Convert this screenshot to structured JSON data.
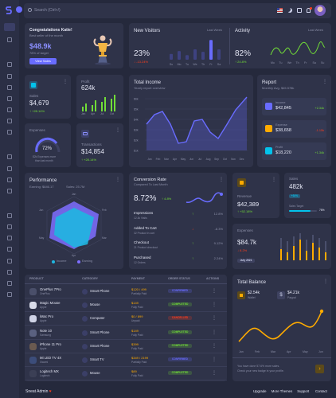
{
  "nav": {
    "search_placeholder": "Search (Ctrl+/)",
    "footer_brand": "Sneat Admin",
    "footer_links": [
      "Upgrade",
      "More Themes",
      "Support",
      "Contact"
    ]
  },
  "congrats": {
    "title": "Congratulations Katie!",
    "subtitle": "Best seller of the month",
    "amount": "$48.9k",
    "target": "78% of target",
    "button": "View Sales"
  },
  "new_visitors": {
    "title": "New Visitors",
    "period": "Last Week",
    "value": "23%",
    "change": "-13.24%",
    "days": [
      "Su",
      "Mo",
      "Tu",
      "We",
      "Th",
      "Fr",
      "Sa"
    ],
    "bar_levels": [
      0.28,
      0.42,
      0.22,
      0.5,
      0.38,
      0.95,
      0.5
    ]
  },
  "activity": {
    "title": "Activity",
    "period": "Last Week",
    "value": "82%",
    "change": "24.8%",
    "days": [
      "Mo",
      "Tu",
      "We",
      "Th",
      "Fr",
      "Sa",
      "Su"
    ]
  },
  "sales_small": {
    "label": "Sales",
    "value": "$4,679",
    "change": "+28.14%"
  },
  "profit_small": {
    "label": "Profit",
    "value": "624k",
    "days": [
      "Jan",
      "Apr",
      "Jul",
      "Oct"
    ]
  },
  "total_income": {
    "title": "Total Income",
    "subtitle": "Yearly report overview",
    "y_ticks": [
      "$6k",
      "$5k",
      "$4k",
      "$3k",
      "$2k",
      "$1k"
    ],
    "months": [
      "Jan",
      "Feb",
      "Mar",
      "Apr",
      "May",
      "Jun",
      "Jul",
      "Aug",
      "Sep",
      "Oct",
      "Nov",
      "Dec"
    ]
  },
  "report": {
    "title": "Report",
    "subtitle": "Monthly Avg. $45.578k",
    "items": [
      {
        "label": "Income",
        "value": "$42,845",
        "change": "+2.34k",
        "color": "#696cff",
        "status": "#71dd37"
      },
      {
        "label": "Expense",
        "value": "$38,658",
        "change": "-1.15k",
        "color": "#ffab00",
        "status": "#ff3e1d"
      },
      {
        "label": "Profit",
        "value": "$18,220",
        "change": "+1.34k",
        "color": "#03c3ec",
        "status": "#71dd37"
      }
    ]
  },
  "expenses_radial": {
    "label": "Expenses",
    "value": "72%",
    "note1": "$2k Expenses more",
    "note2": "than last month"
  },
  "transactions": {
    "label": "Transactions",
    "value": "$14,854",
    "change": "+28.14%"
  },
  "performance": {
    "title": "Performance",
    "earning_label": "Earning: $846.17",
    "sales_label": "Sales: 25.7M",
    "axes": [
      "Jan",
      "Feb",
      "Mar",
      "Apr",
      "May",
      "Jun"
    ],
    "legend": [
      "Income",
      "Earning"
    ]
  },
  "conversion": {
    "title": "Conversion Rate",
    "subtitle": "Compared To Last Month",
    "value": "8.72%",
    "change": "4.8%",
    "rows": [
      {
        "label": "Impressions",
        "sub": "12.4k Visits",
        "change": "12.8%",
        "up": true
      },
      {
        "label": "Added To Cart",
        "sub": "32 Product in cart",
        "change": "-8.3%",
        "up": false
      },
      {
        "label": "Checkout",
        "sub": "21 Product checkout",
        "change": "9.12%",
        "up": true
      },
      {
        "label": "Purchased",
        "sub": "12 Orders",
        "change": "2.24%",
        "up": true
      }
    ]
  },
  "revenue": {
    "label": "Revenue",
    "value": "$42,389",
    "change": "+52.18%"
  },
  "sales_target": {
    "title": "Sales",
    "value": "482k",
    "badge": "+34%",
    "target_label": "Sales Target",
    "target_pct": "78%",
    "target_level": 0.78
  },
  "expenses_chart": {
    "title": "Expenses",
    "value": "$84.7k",
    "change": "8.2%",
    "period": "July 2021"
  },
  "products": {
    "headers": [
      "PRODUCT",
      "CATEGORY",
      "PAYMENT",
      "ORDER STATUS",
      "ACTIONS"
    ],
    "rows": [
      {
        "name": "OnePlus 7Pro",
        "sub": "OnePlus",
        "category": "Smart Phone",
        "amount": "$120 / 499",
        "pay_note": "Partially Paid",
        "status": "CONFIRMED",
        "status_color": "#696cff",
        "avatar": "#4a4f6a"
      },
      {
        "name": "Magic Mouse",
        "sub": "Apple",
        "category": "Mouse",
        "amount": "$149",
        "pay_note": "Fully Paid",
        "status": "COMPLETED",
        "status_color": "#71dd37",
        "avatar": "#d8dbe8"
      },
      {
        "name": "iMac Pro",
        "sub": "Apple",
        "category": "Computer",
        "amount": "$0 / 899",
        "pay_note": "Unpaid",
        "status": "CANCELLED",
        "status_color": "#ff3e1d",
        "avatar": "#cfd3e6"
      },
      {
        "name": "Note 10",
        "sub": "Samsung",
        "category": "Smart Phone",
        "amount": "$149",
        "pay_note": "Fully Paid",
        "status": "COMPLETED",
        "status_color": "#71dd37",
        "avatar": "#5a6180"
      },
      {
        "name": "iPhone 11 Pro",
        "sub": "Apple",
        "category": "Smart Phone",
        "amount": "$399",
        "pay_note": "Fully Paid",
        "status": "COMPLETED",
        "status_color": "#71dd37",
        "avatar": "#6a5a50"
      },
      {
        "name": "Mi LED TV 4X",
        "sub": "Xiaomi",
        "category": "Smart TV",
        "amount": "$349 / 2199",
        "pay_note": "Partially Paid",
        "status": "CONFIRMED",
        "status_color": "#696cff",
        "avatar": "#3c4d7a"
      },
      {
        "name": "Logitech MX",
        "sub": "Logitech",
        "category": "Mouse",
        "amount": "$89",
        "pay_note": "Fully Paid",
        "status": "COMPLETED",
        "status_color": "#71dd37",
        "avatar": "#3b3f55"
      }
    ]
  },
  "total_balance": {
    "title": "Total Balance",
    "wallet_value": "$2.54k",
    "wallet_label": "Wallet",
    "paypal_value": "$4.21k",
    "paypal_label": "Paypal",
    "months": [
      "Jan",
      "Feb",
      "Mar",
      "Apr",
      "May",
      "Jun"
    ],
    "note1": "You have done 57.6% more sales.",
    "note2": "Check your new badge in your profile."
  }
}
